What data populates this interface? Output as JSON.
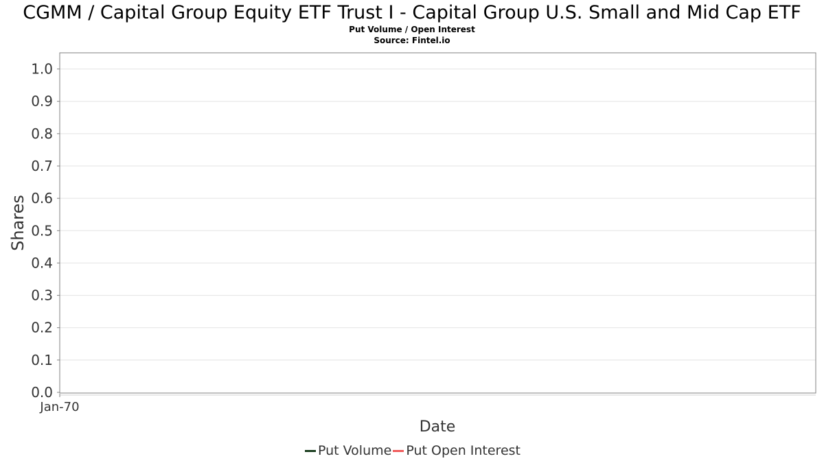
{
  "header": {
    "title": "CGMM / Capital Group Equity ETF Trust I - Capital Group U.S. Small and Mid Cap ETF",
    "subtitle": "Put Volume / Open Interest",
    "source": "Source: Fintel.io"
  },
  "chart_data": {
    "type": "line",
    "title": "CGMM / Capital Group Equity ETF Trust I - Capital Group U.S. Small and Mid Cap ETF",
    "subtitle": "Put Volume / Open Interest",
    "xlabel": "Date",
    "ylabel": "Shares",
    "x_ticks": [
      "Jan-70"
    ],
    "y_ticks": [
      "0.0",
      "0.1",
      "0.2",
      "0.3",
      "0.4",
      "0.5",
      "0.6",
      "0.7",
      "0.8",
      "0.9",
      "1.0"
    ],
    "ylim": [
      0,
      1.05
    ],
    "grid": true,
    "legend_position": "bottom",
    "series": [
      {
        "name": "Put Volume",
        "color": "#1a3d1f",
        "values": []
      },
      {
        "name": "Put Open Interest",
        "color": "#f05a5a",
        "values": []
      }
    ]
  }
}
